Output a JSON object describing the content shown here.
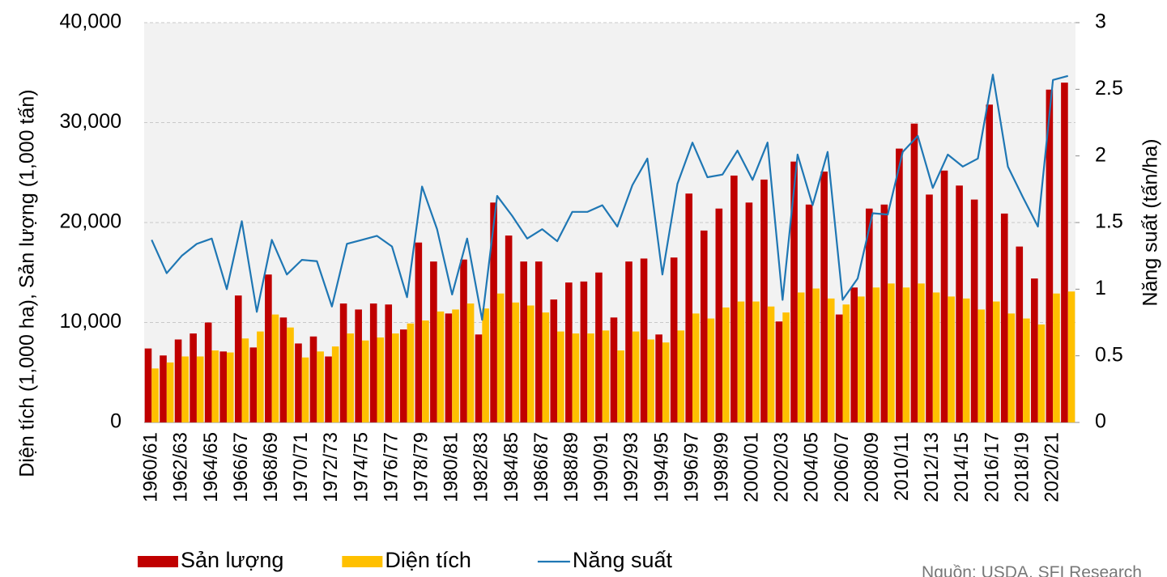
{
  "chart_data": {
    "type": "bar",
    "categories": [
      "1960/61",
      null,
      "1962/63",
      null,
      "1964/65",
      null,
      "1966/67",
      null,
      "1968/69",
      null,
      "1970/71",
      null,
      "1972/73",
      null,
      "1974/75",
      null,
      "1976/77",
      null,
      "1978/79",
      null,
      "1980/81",
      null,
      "1982/83",
      null,
      "1984/85",
      null,
      "1986/87",
      null,
      "1988/89",
      null,
      "1990/91",
      null,
      "1992/93",
      null,
      "1994/95",
      null,
      "1996/97",
      null,
      "1998/99",
      null,
      "2000/01",
      null,
      "2002/03",
      null,
      "2004/05",
      null,
      "2006/07",
      null,
      "2008/09",
      null,
      "2010/11",
      null,
      "2012/13",
      null,
      "2014/15",
      null,
      "2016/17",
      null,
      "2018/19",
      null,
      "2020/21",
      null
    ],
    "series": [
      {
        "name": "Sản lượng",
        "type": "bar",
        "color": "#c00000",
        "values": [
          7400,
          6700,
          8300,
          8900,
          10000,
          7100,
          12700,
          7500,
          14800,
          10500,
          7900,
          8600,
          6600,
          11900,
          11300,
          11900,
          11800,
          9300,
          18000,
          16100,
          10900,
          16300,
          8800,
          22000,
          18700,
          16100,
          16100,
          12300,
          14000,
          14100,
          15000,
          10500,
          16100,
          16400,
          8800,
          16500,
          22900,
          19200,
          21400,
          24700,
          22000,
          24300,
          10100,
          26100,
          21800,
          25100,
          10800,
          13500,
          21400,
          21800,
          27400,
          29900,
          22800,
          25200,
          23700,
          22300,
          31800,
          20900,
          17600,
          14400,
          33300,
          34000
        ]
      },
      {
        "name": "Diện tích",
        "type": "bar",
        "color": "#ffc000",
        "values": [
          5400,
          6000,
          6600,
          6600,
          7200,
          7000,
          8400,
          9100,
          10800,
          9500,
          6500,
          7100,
          7600,
          8900,
          8200,
          8500,
          8900,
          9900,
          10200,
          11100,
          11300,
          11900,
          11400,
          12900,
          12000,
          11700,
          11000,
          9100,
          8900,
          8900,
          9200,
          7200,
          9100,
          8300,
          8000,
          9200,
          10900,
          10400,
          11500,
          12100,
          12100,
          11600,
          11000,
          13000,
          13400,
          12400,
          11800,
          12600,
          13500,
          13900,
          13500,
          13900,
          13000,
          12600,
          12400,
          11300,
          12100,
          10900,
          10400,
          9800,
          12900,
          13100
        ]
      },
      {
        "name": "Năng suất",
        "type": "line",
        "axis": "y2",
        "color": "#1f77b4",
        "values": [
          1.37,
          1.12,
          1.25,
          1.34,
          1.38,
          1.0,
          1.51,
          0.83,
          1.37,
          1.11,
          1.22,
          1.21,
          0.87,
          1.34,
          1.37,
          1.4,
          1.32,
          0.94,
          1.77,
          1.45,
          0.96,
          1.38,
          0.77,
          1.7,
          1.55,
          1.38,
          1.45,
          1.36,
          1.58,
          1.58,
          1.63,
          1.47,
          1.78,
          1.98,
          1.11,
          1.79,
          2.1,
          1.84,
          1.86,
          2.04,
          1.82,
          2.1,
          0.92,
          2.01,
          1.63,
          2.03,
          0.92,
          1.08,
          1.57,
          1.56,
          2.03,
          2.15,
          1.76,
          2.01,
          1.92,
          1.98,
          2.61,
          1.92,
          1.69,
          1.47,
          2.57,
          2.6
        ]
      }
    ],
    "y_label": "Diện tích (1,000 ha), Sản lượng (1,000 tấn)",
    "y2_label": "Năng suất (tấn/ha)",
    "ylim": [
      0,
      40000
    ],
    "yticks": [
      0,
      {
        "value": 10000,
        "label": "10,000"
      },
      {
        "value": 20000,
        "label": "20,000"
      },
      {
        "value": 30000,
        "label": "30,000"
      },
      {
        "value": 40000,
        "label": "40,000"
      }
    ],
    "y2lim": [
      0,
      3
    ],
    "y2ticks": [
      0,
      0.5,
      1,
      1.5,
      2,
      2.5,
      3
    ],
    "grid": true,
    "legend": "bottom-left",
    "source": "Nguồn: USDA, SFI Research"
  }
}
